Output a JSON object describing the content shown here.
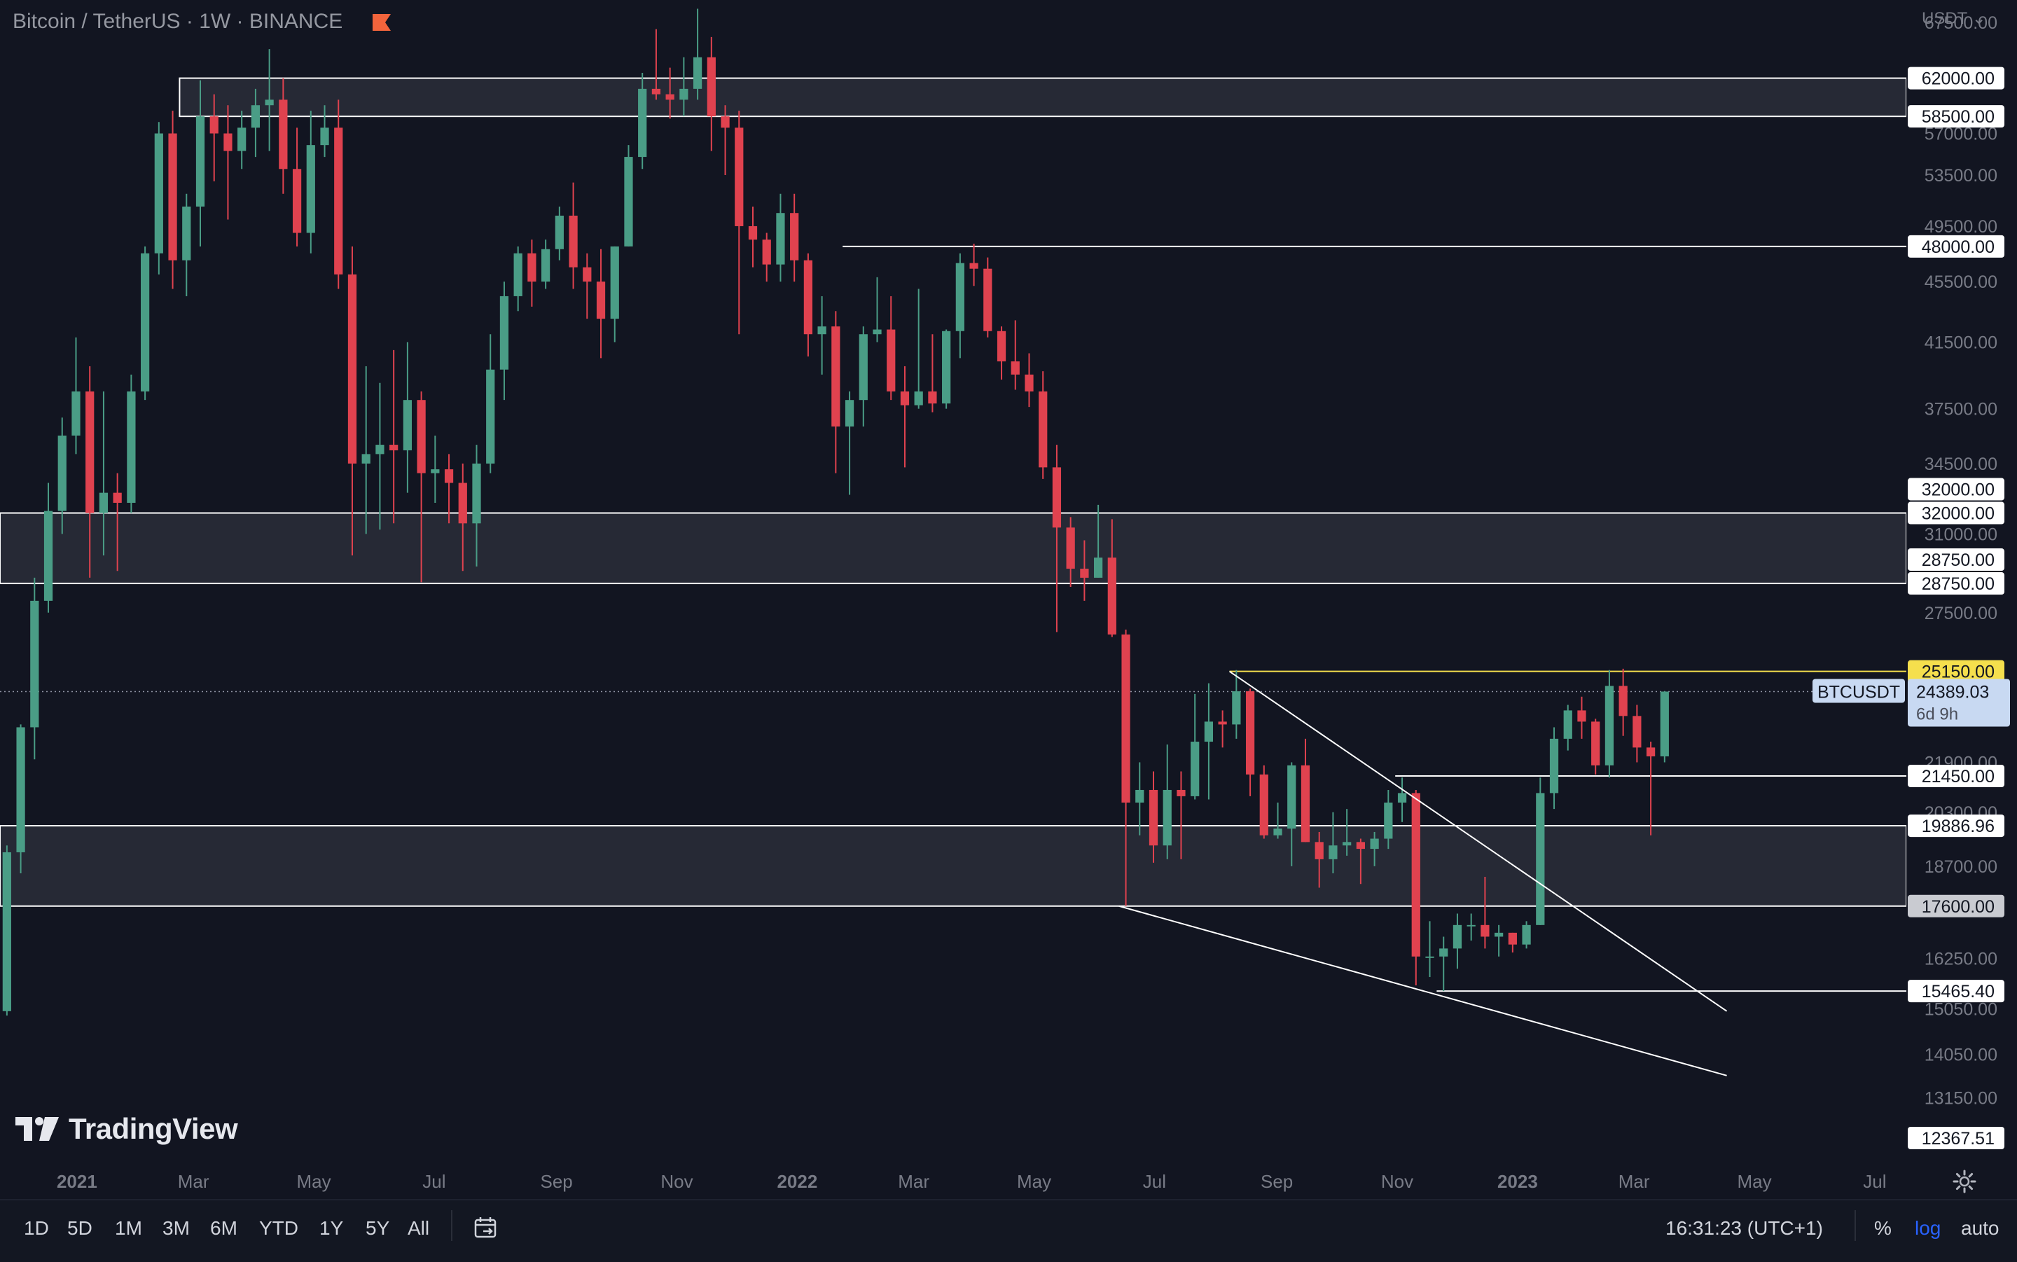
{
  "legend": {
    "symbol_text": "Bitcoin / TetherUS · 1W · BINANCE"
  },
  "currency_label": "USDT",
  "brand": {
    "name": "TradingView"
  },
  "colors": {
    "background": "#121521",
    "up": "#4a9d86",
    "down": "#e0424f",
    "axis_text": "#787b86",
    "zone_fill": "#2a2d38",
    "level_line": "#ffffff",
    "highlight_level": "#f5df4d",
    "price_tag": "#c8d9f2",
    "flag": "#f2643c"
  },
  "toolbar": {
    "timeframes": [
      "1D",
      "5D",
      "1M",
      "3M",
      "6M",
      "YTD",
      "1Y",
      "5Y",
      "All"
    ],
    "clock": "16:31:23 (UTC+1)",
    "percent_label": "%",
    "log_label": "log",
    "auto_label": "auto"
  },
  "chart_data": {
    "type": "candlestick",
    "title": "Bitcoin / TetherUS · 1W · BINANCE",
    "scale": "log",
    "ylim": [
      12367.51,
      68500
    ],
    "grid": false,
    "y_tick_labels": [
      "67500.00",
      "57000.00",
      "53500.00",
      "49500.00",
      "45500.00",
      "41500.00",
      "37500.00",
      "34500.00",
      "31000.00",
      "27500.00",
      "21900.00",
      "20300.00",
      "18700.00",
      "16250.00",
      "15050.00",
      "14050.00",
      "13150.00"
    ],
    "x_tick_labels": [
      {
        "label": "2021",
        "bold": true,
        "x": "2021-01"
      },
      {
        "label": "Mar",
        "x": "2021-03"
      },
      {
        "label": "May",
        "x": "2021-05"
      },
      {
        "label": "Jul",
        "x": "2021-07"
      },
      {
        "label": "Sep",
        "x": "2021-09"
      },
      {
        "label": "Nov",
        "x": "2021-11"
      },
      {
        "label": "2022",
        "bold": true,
        "x": "2022-01"
      },
      {
        "label": "Mar",
        "x": "2022-03"
      },
      {
        "label": "May",
        "x": "2022-05"
      },
      {
        "label": "Jul",
        "x": "2022-07"
      },
      {
        "label": "Sep",
        "x": "2022-09"
      },
      {
        "label": "Nov",
        "x": "2022-11"
      },
      {
        "label": "2023",
        "bold": true,
        "x": "2023-01"
      },
      {
        "label": "Mar",
        "x": "2023-03"
      },
      {
        "label": "May",
        "x": "2023-05"
      },
      {
        "label": "Jul",
        "x": "2023-07"
      }
    ],
    "price_labels": [
      {
        "value": 62000,
        "text": "62000.00",
        "style": "white"
      },
      {
        "value": 58500,
        "text": "58500.00",
        "style": "white"
      },
      {
        "value": 48000,
        "text": "48000.00",
        "style": "white"
      },
      {
        "value": 32000,
        "text": "32000.00",
        "style": "white",
        "offset": -34
      },
      {
        "value": 32000,
        "text": "32000.00",
        "style": "white"
      },
      {
        "value": 28750,
        "text": "28750.00",
        "style": "white",
        "offset": -34
      },
      {
        "value": 28750,
        "text": "28750.00",
        "style": "white"
      },
      {
        "value": 25150,
        "text": "25150.00",
        "style": "yellow"
      },
      {
        "value": 21450,
        "text": "21450.00",
        "style": "white"
      },
      {
        "value": 19886.96,
        "text": "19886.96",
        "style": "white"
      },
      {
        "value": 17600,
        "text": "17600.00",
        "style": "grey"
      },
      {
        "value": 15465.4,
        "text": "15465.40",
        "style": "white"
      },
      {
        "value": 12367.51,
        "text": "12367.51",
        "style": "white"
      }
    ],
    "current_price": {
      "symbol": "BTCUSDT",
      "value": 24389.03,
      "text": "24389.03",
      "countdown": "6d 9h"
    },
    "zones": [
      {
        "low": 58500,
        "high": 62000,
        "from": "2021-02-22",
        "to": "end"
      },
      {
        "low": 28750,
        "high": 32000,
        "from": "start",
        "to": "end"
      },
      {
        "low": 17600,
        "high": 19886.96,
        "from": "start",
        "to": "end"
      }
    ],
    "horizontal_lines": [
      {
        "value": 48000,
        "from": "2022-01-24",
        "to": "end",
        "color": "white"
      },
      {
        "value": 25150,
        "from": "2022-08-08",
        "to": "end",
        "color": "yellow"
      },
      {
        "value": 21450,
        "from": "2022-10-31",
        "to": "end",
        "color": "white"
      },
      {
        "value": 15465.4,
        "from": "2022-11-21",
        "to": "end",
        "color": "white"
      }
    ],
    "trendlines": [
      {
        "from": [
          "2022-08-08",
          25150
        ],
        "to": [
          "2023-04-17",
          15000
        ]
      },
      {
        "from": [
          "2022-06-13",
          17600
        ],
        "to": [
          "2023-04-17",
          13600
        ]
      }
    ],
    "x_start": "2020-11-23",
    "x_end": "2023-07-17",
    "candles": [
      [
        "2020-11-23",
        15000,
        19300,
        14900,
        19100
      ],
      [
        "2020-11-30",
        19100,
        23200,
        18500,
        23100
      ],
      [
        "2020-12-07",
        23100,
        29000,
        22000,
        28000
      ],
      [
        "2020-12-14",
        28000,
        33500,
        27500,
        32100
      ],
      [
        "2020-12-21",
        32100,
        37000,
        31000,
        36000
      ],
      [
        "2020-12-28",
        36000,
        41800,
        35000,
        38500
      ],
      [
        "2021-01-04",
        38500,
        40000,
        29000,
        32000
      ],
      [
        "2021-01-11",
        32000,
        38500,
        30000,
        33000
      ],
      [
        "2021-01-18",
        33000,
        34000,
        29300,
        32500
      ],
      [
        "2021-01-25",
        32500,
        39500,
        32000,
        38500
      ],
      [
        "2021-02-01",
        38500,
        48000,
        38000,
        47500
      ],
      [
        "2021-02-08",
        47500,
        58000,
        46000,
        57000
      ],
      [
        "2021-02-15",
        57000,
        59000,
        45000,
        47000
      ],
      [
        "2021-02-22",
        47000,
        52000,
        44500,
        51000
      ],
      [
        "2021-03-01",
        51000,
        61800,
        48000,
        58500
      ],
      [
        "2021-03-08",
        58500,
        60500,
        53000,
        57000
      ],
      [
        "2021-03-15",
        57000,
        59500,
        50000,
        55500
      ],
      [
        "2021-03-22",
        55500,
        59000,
        54000,
        57500
      ],
      [
        "2021-03-29",
        57500,
        61000,
        55000,
        59500
      ],
      [
        "2021-04-05",
        59500,
        64800,
        55500,
        60000
      ],
      [
        "2021-04-12",
        60000,
        62000,
        52000,
        54000
      ],
      [
        "2021-04-19",
        54000,
        57500,
        48000,
        49000
      ],
      [
        "2021-04-26",
        49000,
        59000,
        47500,
        56000
      ],
      [
        "2021-05-03",
        56000,
        59500,
        55000,
        57500
      ],
      [
        "2021-05-10",
        57500,
        60000,
        45000,
        46000
      ],
      [
        "2021-05-17",
        46000,
        48000,
        30000,
        34500
      ],
      [
        "2021-05-24",
        34500,
        40000,
        31000,
        35000
      ],
      [
        "2021-05-31",
        35000,
        39000,
        31200,
        35500
      ],
      [
        "2021-06-07",
        35500,
        41000,
        31500,
        35200
      ],
      [
        "2021-06-14",
        35200,
        41500,
        33000,
        38000
      ],
      [
        "2021-06-21",
        38000,
        38500,
        28800,
        34000
      ],
      [
        "2021-06-28",
        34000,
        36000,
        32500,
        34200
      ],
      [
        "2021-07-05",
        34200,
        35000,
        31500,
        33500
      ],
      [
        "2021-07-12",
        33500,
        34500,
        29300,
        31500
      ],
      [
        "2021-07-19",
        31500,
        35500,
        29500,
        34500
      ],
      [
        "2021-07-26",
        34500,
        42000,
        34000,
        39800
      ],
      [
        "2021-08-02",
        39800,
        45500,
        38000,
        44500
      ],
      [
        "2021-08-09",
        44500,
        48000,
        43500,
        47500
      ],
      [
        "2021-08-16",
        47500,
        48500,
        43800,
        45500
      ],
      [
        "2021-08-23",
        45500,
        48500,
        45000,
        47800
      ],
      [
        "2021-08-30",
        47800,
        51000,
        47000,
        50300
      ],
      [
        "2021-09-06",
        50300,
        52900,
        45000,
        46500
      ],
      [
        "2021-09-13",
        46500,
        47500,
        43000,
        45500
      ],
      [
        "2021-09-20",
        45500,
        47800,
        40500,
        43000
      ],
      [
        "2021-09-27",
        43000,
        48000,
        41500,
        48000
      ],
      [
        "2021-10-04",
        48000,
        56000,
        48000,
        55000
      ],
      [
        "2021-10-11",
        55000,
        62500,
        54000,
        61000
      ],
      [
        "2021-10-18",
        61000,
        66800,
        60000,
        60500
      ],
      [
        "2021-10-25",
        60500,
        63000,
        58300,
        60000
      ],
      [
        "2021-11-01",
        60000,
        64000,
        58500,
        61000
      ],
      [
        "2021-11-08",
        61000,
        68900,
        60000,
        64000
      ],
      [
        "2021-11-15",
        64000,
        66000,
        55500,
        58500
      ],
      [
        "2021-11-22",
        58500,
        59500,
        53500,
        57500
      ],
      [
        "2021-11-29",
        57500,
        59000,
        42000,
        49500
      ],
      [
        "2021-12-06",
        49500,
        51000,
        46500,
        48500
      ],
      [
        "2021-12-13",
        48500,
        49000,
        45500,
        46700
      ],
      [
        "2021-12-20",
        46700,
        52000,
        45500,
        50500
      ],
      [
        "2021-12-27",
        50500,
        52000,
        45500,
        47000
      ],
      [
        "2022-01-03",
        47000,
        47500,
        40600,
        42000
      ],
      [
        "2022-01-10",
        42000,
        44500,
        39500,
        42500
      ],
      [
        "2022-01-17",
        42500,
        43500,
        34000,
        36500
      ],
      [
        "2022-01-24",
        36500,
        38500,
        32900,
        38000
      ],
      [
        "2022-01-31",
        38000,
        42500,
        36500,
        42000
      ],
      [
        "2022-02-07",
        42000,
        45800,
        41500,
        42300
      ],
      [
        "2022-02-14",
        42300,
        44500,
        38000,
        38500
      ],
      [
        "2022-02-21",
        38500,
        40000,
        34300,
        37700
      ],
      [
        "2022-02-28",
        37700,
        45000,
        37500,
        38500
      ],
      [
        "2022-03-07",
        38500,
        42000,
        37300,
        37800
      ],
      [
        "2022-03-14",
        37800,
        42300,
        37500,
        42200
      ],
      [
        "2022-03-21",
        42200,
        47500,
        40500,
        46800
      ],
      [
        "2022-03-28",
        46800,
        48200,
        45200,
        46400
      ],
      [
        "2022-04-04",
        46400,
        47200,
        41800,
        42200
      ],
      [
        "2022-04-11",
        42200,
        42500,
        39200,
        40300
      ],
      [
        "2022-04-18",
        40300,
        42900,
        38600,
        39500
      ],
      [
        "2022-04-25",
        39500,
        40800,
        37600,
        38500
      ],
      [
        "2022-05-02",
        38500,
        39700,
        33700,
        34300
      ],
      [
        "2022-05-09",
        34300,
        35500,
        26700,
        31300
      ],
      [
        "2022-05-16",
        31300,
        31800,
        28600,
        29400
      ],
      [
        "2022-05-23",
        29400,
        30700,
        28000,
        29000
      ],
      [
        "2022-05-30",
        29000,
        32400,
        29000,
        29900
      ],
      [
        "2022-06-06",
        29900,
        31700,
        26500,
        26600
      ],
      [
        "2022-06-13",
        26600,
        26800,
        17600,
        20600
      ],
      [
        "2022-06-20",
        20600,
        21900,
        19600,
        21000
      ],
      [
        "2022-06-27",
        21000,
        21600,
        18800,
        19300
      ],
      [
        "2022-07-04",
        19300,
        22500,
        18900,
        21000
      ],
      [
        "2022-07-11",
        21000,
        21600,
        18900,
        20800
      ],
      [
        "2022-07-18",
        20800,
        24300,
        20700,
        22600
      ],
      [
        "2022-07-25",
        22600,
        24700,
        20700,
        23300
      ],
      [
        "2022-08-01",
        23300,
        23700,
        22400,
        23200
      ],
      [
        "2022-08-08",
        23200,
        25200,
        22700,
        24400
      ],
      [
        "2022-08-15",
        24400,
        24500,
        20800,
        21500
      ],
      [
        "2022-08-22",
        21500,
        21800,
        19500,
        19600
      ],
      [
        "2022-08-29",
        19600,
        20600,
        19500,
        19800
      ],
      [
        "2022-09-05",
        19800,
        21900,
        18700,
        21800
      ],
      [
        "2022-09-12",
        21800,
        22700,
        19400,
        19400
      ],
      [
        "2022-09-19",
        19400,
        19700,
        18100,
        18900
      ],
      [
        "2022-09-26",
        18900,
        20300,
        18500,
        19300
      ],
      [
        "2022-10-03",
        19300,
        20400,
        19000,
        19400
      ],
      [
        "2022-10-10",
        19400,
        19500,
        18200,
        19200
      ],
      [
        "2022-10-17",
        19200,
        19700,
        18700,
        19500
      ],
      [
        "2022-10-24",
        19500,
        21000,
        19200,
        20600
      ],
      [
        "2022-10-31",
        20600,
        21400,
        20000,
        20900
      ],
      [
        "2022-11-07",
        20900,
        21000,
        15600,
        16300
      ],
      [
        "2022-11-14",
        16300,
        17200,
        15800,
        16300
      ],
      [
        "2022-11-21",
        16300,
        16800,
        15465,
        16500
      ],
      [
        "2022-11-28",
        16500,
        17400,
        16000,
        17100
      ],
      [
        "2022-12-05",
        17100,
        17400,
        16700,
        17100
      ],
      [
        "2022-12-12",
        17100,
        18400,
        16500,
        16800
      ],
      [
        "2022-12-19",
        16800,
        17100,
        16300,
        16900
      ],
      [
        "2022-12-26",
        16900,
        16900,
        16400,
        16600
      ],
      [
        "2023-01-02",
        16600,
        17200,
        16500,
        17100
      ],
      [
        "2023-01-09",
        17100,
        21400,
        17100,
        20900
      ],
      [
        "2023-01-16",
        20900,
        23100,
        20400,
        22700
      ],
      [
        "2023-01-23",
        22700,
        23900,
        22300,
        23700
      ],
      [
        "2023-01-30",
        23700,
        24200,
        22700,
        23300
      ],
      [
        "2023-02-06",
        23300,
        23400,
        21500,
        21800
      ],
      [
        "2023-02-13",
        21800,
        25200,
        21400,
        24600
      ],
      [
        "2023-02-20",
        24600,
        25250,
        22800,
        23500
      ],
      [
        "2023-02-27",
        23500,
        23900,
        21900,
        22400
      ],
      [
        "2023-03-06",
        22400,
        22600,
        19600,
        22100
      ],
      [
        "2023-03-13",
        22100,
        24400,
        21900,
        24389
      ]
    ]
  }
}
